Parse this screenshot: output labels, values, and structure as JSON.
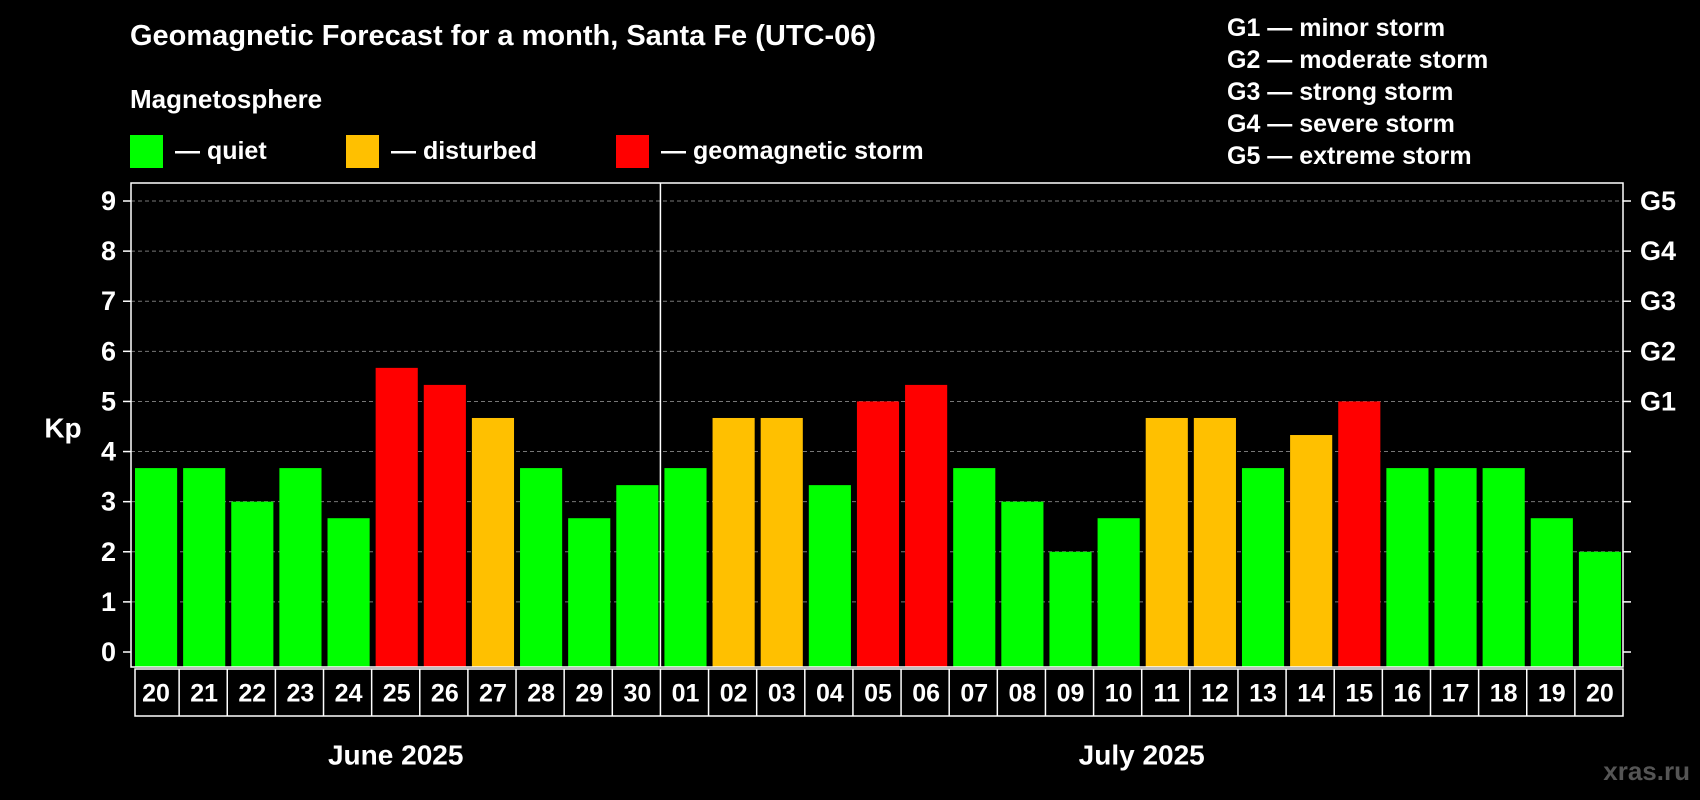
{
  "chart_data": {
    "type": "bar",
    "title": "Geomagnetic Forecast for a month, Santa Fe (UTC-06)",
    "legend_title": "Magnetosphere",
    "legend": [
      {
        "label": "— quiet",
        "color": "#00ff00"
      },
      {
        "label": "— disturbed",
        "color": "#ffc000"
      },
      {
        "label": "— geomagnetic storm",
        "color": "#ff0000"
      }
    ],
    "storm_scale": [
      "G1 — minor storm",
      "G2 — moderate storm",
      "G3 — strong storm",
      "G4 — severe storm",
      "G5 — extreme storm"
    ],
    "ylabel": "Kp",
    "ylim": [
      0,
      9
    ],
    "yticks": [
      "0",
      "1",
      "2",
      "3",
      "4",
      "5",
      "6",
      "7",
      "8",
      "9"
    ],
    "right_ticks": [
      {
        "kp": 5,
        "label": "G1"
      },
      {
        "kp": 6,
        "label": "G2"
      },
      {
        "kp": 7,
        "label": "G3"
      },
      {
        "kp": 8,
        "label": "G4"
      },
      {
        "kp": 9,
        "label": "G5"
      }
    ],
    "months": [
      {
        "label": "June 2025",
        "span": [
          0,
          10
        ]
      },
      {
        "label": "July 2025",
        "span": [
          11,
          30
        ]
      }
    ],
    "categories": [
      "20",
      "21",
      "22",
      "23",
      "24",
      "25",
      "26",
      "27",
      "28",
      "29",
      "30",
      "01",
      "02",
      "03",
      "04",
      "05",
      "06",
      "07",
      "08",
      "09",
      "10",
      "11",
      "12",
      "13",
      "14",
      "15",
      "16",
      "17",
      "18",
      "19",
      "20"
    ],
    "values": [
      3.67,
      3.67,
      3.0,
      3.67,
      2.67,
      5.67,
      5.33,
      4.67,
      3.67,
      2.67,
      3.33,
      3.67,
      4.67,
      4.67,
      3.33,
      5.0,
      5.33,
      3.67,
      3.0,
      2.0,
      2.67,
      4.67,
      4.67,
      3.67,
      4.33,
      5.0,
      3.67,
      3.67,
      3.67,
      2.67,
      2.0
    ],
    "status": [
      "quiet",
      "quiet",
      "quiet",
      "quiet",
      "quiet",
      "storm",
      "storm",
      "disturbed",
      "quiet",
      "quiet",
      "quiet",
      "quiet",
      "disturbed",
      "disturbed",
      "quiet",
      "storm",
      "storm",
      "quiet",
      "quiet",
      "quiet",
      "quiet",
      "disturbed",
      "disturbed",
      "quiet",
      "disturbed",
      "storm",
      "quiet",
      "quiet",
      "quiet",
      "quiet",
      "quiet"
    ],
    "colors": {
      "quiet": "#00ff00",
      "disturbed": "#ffc000",
      "storm": "#ff0000",
      "grid": "#777777",
      "axis": "#ffffff"
    }
  },
  "watermark": "xras.ru"
}
